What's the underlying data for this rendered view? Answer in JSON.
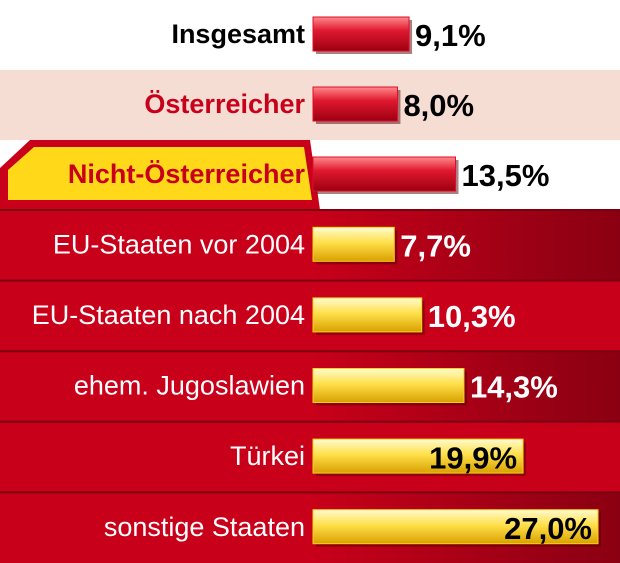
{
  "chart_data": {
    "type": "hbar",
    "categories": [
      "Insgesamt",
      "Österreicher",
      "Nicht-Österreicher",
      "EU-Staaten vor 2004",
      "EU-Staaten nach 2004",
      "ehem. Jugoslawien",
      "Türkei",
      "sonstige Staaten"
    ],
    "values": [
      9.1,
      8.0,
      13.5,
      7.7,
      10.3,
      14.3,
      19.9,
      27.0
    ],
    "value_labels": [
      "9,1%",
      "8,0%",
      "13,5%",
      "7,7%",
      "10,3%",
      "14,3%",
      "19,9%",
      "27,0%"
    ],
    "colors": [
      "#d8102a",
      "#d8102a",
      "#d8102a",
      "#f7d21a",
      "#f7d21a",
      "#f7d21a",
      "#f7d21a",
      "#f7d21a"
    ]
  }
}
